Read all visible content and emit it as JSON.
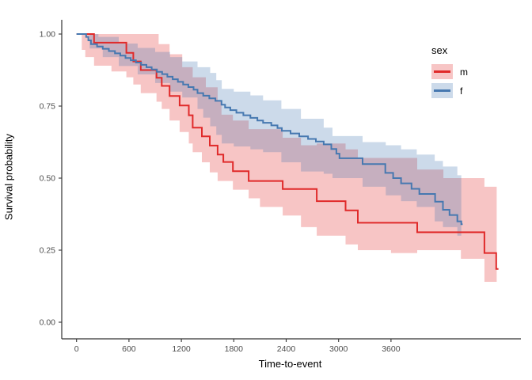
{
  "figure": {
    "xlabel": "Time-to-event",
    "ylabel": "Survival probability",
    "legend": {
      "title": "sex",
      "entries": [
        {
          "label": "m",
          "line_color": "#E02A2A",
          "band_fill": "rgba(224,42,42,0.27)"
        },
        {
          "label": "f",
          "line_color": "#4678B0",
          "band_fill": "rgba(67,119,177,0.27)"
        }
      ]
    }
  },
  "chart_data": {
    "type": "line",
    "subtype": "kaplan-meier-step-with-ci",
    "title": "",
    "xlabel": "Time-to-event",
    "ylabel": "Survival probability",
    "x_ticks": [
      0,
      600,
      1200,
      1800,
      2400,
      3000,
      3600
    ],
    "y_tick_labels": [
      "0.00",
      "0.25",
      "0.50",
      "0.75",
      "1.00"
    ],
    "y_tick_values": [
      0.0,
      0.25,
      0.5,
      0.75,
      1.0
    ],
    "xlim": [
      -170,
      5060
    ],
    "ylim": [
      -0.06,
      1.06
    ],
    "grid": false,
    "legend_position": "right-top",
    "axis_color": "#333333",
    "tick_label_color": "#4d4d4d",
    "series": [
      {
        "name": "m",
        "color": "#E02A2A",
        "band_fill": "rgba(224,42,42,0.27)",
        "steps": [
          [
            0,
            1.0
          ],
          [
            200,
            0.97
          ],
          [
            570,
            0.935
          ],
          [
            650,
            0.905
          ],
          [
            735,
            0.875
          ],
          [
            915,
            0.848
          ],
          [
            975,
            0.82
          ],
          [
            1065,
            0.785
          ],
          [
            1180,
            0.752
          ],
          [
            1285,
            0.718
          ],
          [
            1330,
            0.675
          ],
          [
            1435,
            0.645
          ],
          [
            1525,
            0.613
          ],
          [
            1615,
            0.582
          ],
          [
            1680,
            0.556
          ],
          [
            1790,
            0.524
          ],
          [
            1970,
            0.49
          ],
          [
            2360,
            0.462
          ],
          [
            2750,
            0.42
          ],
          [
            3080,
            0.388
          ],
          [
            3220,
            0.345
          ],
          [
            3900,
            0.312
          ],
          [
            4670,
            0.24
          ],
          [
            4805,
            0.185
          ],
          [
            4830,
            0.185
          ]
        ],
        "ci_upper": [
          [
            0,
            1.0
          ],
          [
            800,
            1.0
          ],
          [
            940,
            0.965
          ],
          [
            1065,
            0.93
          ],
          [
            1210,
            0.885
          ],
          [
            1330,
            0.85
          ],
          [
            1480,
            0.815
          ],
          [
            1615,
            0.77
          ],
          [
            1660,
            0.72
          ],
          [
            1790,
            0.7
          ],
          [
            1970,
            0.67
          ],
          [
            2360,
            0.64
          ],
          [
            2570,
            0.614
          ],
          [
            2750,
            0.62
          ],
          [
            3080,
            0.6
          ],
          [
            3220,
            0.57
          ],
          [
            3900,
            0.53
          ],
          [
            4200,
            0.5
          ],
          [
            4670,
            0.47
          ],
          [
            4810,
            0.46
          ]
        ],
        "ci_lower": [
          [
            0,
            1.0
          ],
          [
            60,
            0.945
          ],
          [
            100,
            0.92
          ],
          [
            200,
            0.89
          ],
          [
            400,
            0.87
          ],
          [
            570,
            0.85
          ],
          [
            650,
            0.825
          ],
          [
            735,
            0.795
          ],
          [
            915,
            0.765
          ],
          [
            975,
            0.74
          ],
          [
            1065,
            0.7
          ],
          [
            1180,
            0.66
          ],
          [
            1285,
            0.62
          ],
          [
            1330,
            0.59
          ],
          [
            1435,
            0.555
          ],
          [
            1525,
            0.52
          ],
          [
            1615,
            0.49
          ],
          [
            1790,
            0.46
          ],
          [
            1970,
            0.43
          ],
          [
            2100,
            0.4
          ],
          [
            2360,
            0.37
          ],
          [
            2570,
            0.33
          ],
          [
            2750,
            0.3
          ],
          [
            3080,
            0.27
          ],
          [
            3220,
            0.25
          ],
          [
            3600,
            0.24
          ],
          [
            3900,
            0.25
          ],
          [
            4200,
            0.25
          ],
          [
            4400,
            0.22
          ],
          [
            4670,
            0.14
          ],
          [
            4810,
            0.11
          ]
        ]
      },
      {
        "name": "f",
        "color": "#4678B0",
        "band_fill": "rgba(67,119,177,0.27)",
        "steps": [
          [
            0,
            1.0
          ],
          [
            110,
            0.99
          ],
          [
            135,
            0.978
          ],
          [
            165,
            0.965
          ],
          [
            235,
            0.957
          ],
          [
            300,
            0.949
          ],
          [
            370,
            0.941
          ],
          [
            440,
            0.933
          ],
          [
            500,
            0.925
          ],
          [
            560,
            0.917
          ],
          [
            620,
            0.909
          ],
          [
            680,
            0.901
          ],
          [
            740,
            0.893
          ],
          [
            800,
            0.885
          ],
          [
            860,
            0.877
          ],
          [
            920,
            0.869
          ],
          [
            980,
            0.861
          ],
          [
            1040,
            0.852
          ],
          [
            1100,
            0.843
          ],
          [
            1160,
            0.834
          ],
          [
            1220,
            0.825
          ],
          [
            1280,
            0.816
          ],
          [
            1340,
            0.807
          ],
          [
            1385,
            0.795
          ],
          [
            1450,
            0.786
          ],
          [
            1520,
            0.777
          ],
          [
            1590,
            0.768
          ],
          [
            1660,
            0.755
          ],
          [
            1700,
            0.745
          ],
          [
            1760,
            0.736
          ],
          [
            1830,
            0.727
          ],
          [
            1910,
            0.718
          ],
          [
            1990,
            0.709
          ],
          [
            2070,
            0.7
          ],
          [
            2135,
            0.692
          ],
          [
            2230,
            0.683
          ],
          [
            2300,
            0.674
          ],
          [
            2350,
            0.664
          ],
          [
            2450,
            0.655
          ],
          [
            2550,
            0.645
          ],
          [
            2650,
            0.636
          ],
          [
            2740,
            0.627
          ],
          [
            2830,
            0.617
          ],
          [
            2917,
            0.601
          ],
          [
            2975,
            0.585
          ],
          [
            3010,
            0.569
          ],
          [
            3275,
            0.549
          ],
          [
            3535,
            0.518
          ],
          [
            3625,
            0.5
          ],
          [
            3715,
            0.482
          ],
          [
            3835,
            0.463
          ],
          [
            3925,
            0.445
          ],
          [
            4105,
            0.418
          ],
          [
            4195,
            0.39
          ],
          [
            4270,
            0.372
          ],
          [
            4360,
            0.35
          ],
          [
            4405,
            0.34
          ],
          [
            4420,
            0.34
          ]
        ],
        "ci_upper": [
          [
            0,
            1.0
          ],
          [
            250,
            0.99
          ],
          [
            483,
            0.967
          ],
          [
            700,
            0.952
          ],
          [
            900,
            0.938
          ],
          [
            1070,
            0.92
          ],
          [
            1210,
            0.905
          ],
          [
            1385,
            0.885
          ],
          [
            1530,
            0.865
          ],
          [
            1600,
            0.84
          ],
          [
            1662,
            0.81
          ],
          [
            1800,
            0.8
          ],
          [
            1990,
            0.787
          ],
          [
            2135,
            0.77
          ],
          [
            2345,
            0.74
          ],
          [
            2569,
            0.706
          ],
          [
            2830,
            0.675
          ],
          [
            2930,
            0.646
          ],
          [
            3275,
            0.625
          ],
          [
            3540,
            0.614
          ],
          [
            3715,
            0.6
          ],
          [
            3895,
            0.582
          ],
          [
            4100,
            0.56
          ],
          [
            4195,
            0.54
          ],
          [
            4360,
            0.51
          ],
          [
            4405,
            0.5
          ]
        ],
        "ci_lower": [
          [
            0,
            1.0
          ],
          [
            150,
            0.95
          ],
          [
            300,
            0.92
          ],
          [
            483,
            0.889
          ],
          [
            700,
            0.86
          ],
          [
            900,
            0.83
          ],
          [
            1070,
            0.8
          ],
          [
            1210,
            0.78
          ],
          [
            1385,
            0.74
          ],
          [
            1450,
            0.71
          ],
          [
            1530,
            0.68
          ],
          [
            1600,
            0.65
          ],
          [
            1662,
            0.62
          ],
          [
            1800,
            0.61
          ],
          [
            1990,
            0.6
          ],
          [
            2135,
            0.59
          ],
          [
            2345,
            0.555
          ],
          [
            2569,
            0.523
          ],
          [
            2830,
            0.515
          ],
          [
            2930,
            0.5
          ],
          [
            3275,
            0.47
          ],
          [
            3540,
            0.44
          ],
          [
            3715,
            0.42
          ],
          [
            3895,
            0.4
          ],
          [
            4100,
            0.35
          ],
          [
            4195,
            0.33
          ],
          [
            4360,
            0.3
          ],
          [
            4405,
            0.28
          ]
        ]
      }
    ]
  }
}
